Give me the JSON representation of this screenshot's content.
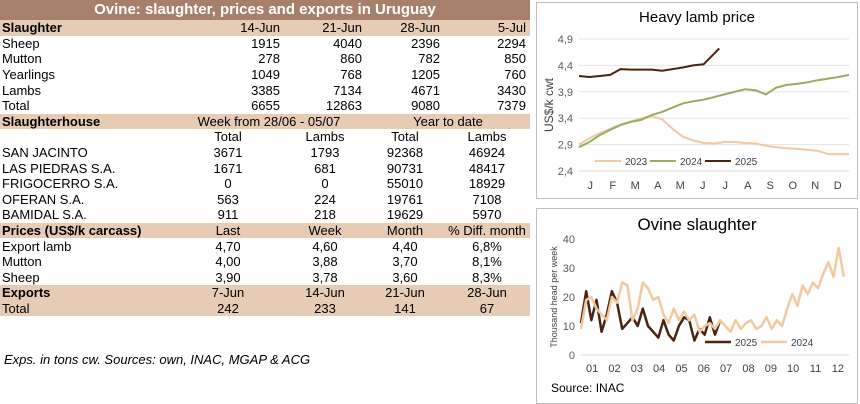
{
  "banner_title": "Ovine: slaughter, prices and exports in Uruguay",
  "slaughter": {
    "header": "Slaughter",
    "dates": [
      "14-Jun",
      "21-Jun",
      "28-Jun",
      "5-Jul"
    ],
    "rows": [
      {
        "label": "Sheep",
        "values": [
          "1915",
          "4040",
          "2396",
          "2294"
        ]
      },
      {
        "label": "Mutton",
        "values": [
          "278",
          "860",
          "782",
          "850"
        ]
      },
      {
        "label": "Yearlings",
        "values": [
          "1049",
          "768",
          "1205",
          "760"
        ]
      },
      {
        "label": "Lambs",
        "values": [
          "3385",
          "7134",
          "4671",
          "3430"
        ]
      },
      {
        "label": "Total",
        "values": [
          "6655",
          "12863",
          "9080",
          "7379"
        ]
      }
    ]
  },
  "slaughterhouse": {
    "header": "Slaughterhouse",
    "week_label": "Week from 28/06 - 05/07",
    "ytd_label": "Year to date",
    "cols": [
      "Total",
      "Lambs",
      "Total",
      "Lambs"
    ],
    "rows": [
      {
        "label": "SAN JACINTO",
        "values": [
          "3671",
          "1793",
          "92368",
          "46924"
        ]
      },
      {
        "label": "LAS PIEDRAS S.A.",
        "values": [
          "1671",
          "681",
          "90731",
          "48417"
        ]
      },
      {
        "label": "FRIGOCERRO S.A.",
        "values": [
          "0",
          "0",
          "55010",
          "18929"
        ]
      },
      {
        "label": "OFERAN S.A.",
        "values": [
          "563",
          "224",
          "19761",
          "7108"
        ]
      },
      {
        "label": "BAMIDAL S.A.",
        "values": [
          "911",
          "218",
          "19629",
          "5970"
        ]
      }
    ]
  },
  "prices": {
    "header": "Prices (US$/k carcass)",
    "cols": [
      "Last",
      "Week",
      "Month",
      "% Diff. month"
    ],
    "rows": [
      {
        "label": "Export lamb",
        "values": [
          "4,70",
          "4,60",
          "4,40",
          "6,8%"
        ]
      },
      {
        "label": "Mutton",
        "values": [
          "4,00",
          "3,88",
          "3,70",
          "8,1%"
        ]
      },
      {
        "label": "Sheep",
        "values": [
          "3,90",
          "3,78",
          "3,60",
          "8,3%"
        ]
      }
    ]
  },
  "exports": {
    "header": "Exports",
    "dates": [
      "7-Jun",
      "14-Jun",
      "21-Jun",
      "28-Jun"
    ],
    "rows": [
      {
        "label": "Total",
        "values": [
          "242",
          "233",
          "141",
          "67"
        ]
      }
    ]
  },
  "note": "Exps. in tons cw. Sources: own, INAC, MGAP & ACG",
  "chart_data": [
    {
      "type": "line",
      "title": "Heavy lamb price",
      "ylabel": "US$/k cwt",
      "xlabel": "",
      "categories": [
        "J",
        "F",
        "M",
        "A",
        "M",
        "J",
        "J",
        "A",
        "S",
        "O",
        "N",
        "D"
      ],
      "yticks": [
        "2,4",
        "2,9",
        "3,4",
        "3,9",
        "4,4",
        "4,9"
      ],
      "ylim": [
        2.4,
        4.9
      ],
      "xlim": [
        0,
        52
      ],
      "legend_position": "bottom",
      "series": [
        {
          "name": "2023",
          "color": "#f2c9a1",
          "x": [
            0,
            2,
            4,
            6,
            8,
            10,
            12,
            14,
            16,
            18,
            20,
            22,
            24,
            26,
            28,
            30,
            32,
            34,
            36,
            38,
            40,
            42,
            44,
            46,
            48,
            50,
            52
          ],
          "y": [
            2.9,
            3.02,
            3.12,
            3.2,
            3.28,
            3.34,
            3.4,
            3.44,
            3.38,
            3.2,
            3.05,
            2.98,
            2.93,
            2.92,
            2.95,
            2.95,
            2.93,
            2.92,
            2.88,
            2.85,
            2.83,
            2.82,
            2.8,
            2.78,
            2.72,
            2.72,
            2.72
          ]
        },
        {
          "name": "2024",
          "color": "#9aab63",
          "x": [
            0,
            2,
            4,
            6,
            8,
            10,
            12,
            14,
            16,
            18,
            20,
            22,
            24,
            26,
            28,
            30,
            32,
            34,
            36,
            38,
            40,
            42,
            44,
            46,
            48,
            50,
            52
          ],
          "y": [
            2.85,
            2.95,
            3.08,
            3.18,
            3.27,
            3.33,
            3.37,
            3.46,
            3.52,
            3.6,
            3.68,
            3.72,
            3.75,
            3.8,
            3.85,
            3.9,
            3.95,
            3.93,
            3.85,
            3.98,
            4.03,
            4.05,
            4.08,
            4.12,
            4.15,
            4.18,
            4.22
          ]
        },
        {
          "name": "2025",
          "color": "#4a2410",
          "x": [
            0,
            2,
            4,
            6,
            8,
            10,
            12,
            14,
            16,
            18,
            20,
            22,
            24,
            26,
            27
          ],
          "y": [
            4.2,
            4.18,
            4.2,
            4.22,
            4.33,
            4.32,
            4.32,
            4.32,
            4.3,
            4.33,
            4.36,
            4.4,
            4.42,
            4.62,
            4.72
          ]
        }
      ]
    },
    {
      "type": "line",
      "title": "Ovine slaughter",
      "ylabel": "Thousand head per week",
      "xlabel": "",
      "categories": [
        "01",
        "02",
        "03",
        "04",
        "05",
        "06",
        "07",
        "08",
        "09",
        "10",
        "11",
        "12"
      ],
      "yticks": [
        "0",
        "10",
        "20",
        "30",
        "40"
      ],
      "ylim": [
        0,
        40
      ],
      "xlim": [
        0,
        52
      ],
      "legend_position": "bottom",
      "source": "Source: INAC",
      "series": [
        {
          "name": "2025",
          "color": "#4a2410",
          "x": [
            0,
            1,
            2,
            3,
            4,
            5,
            6,
            7,
            8,
            9,
            10,
            11,
            12,
            13,
            14,
            15,
            16,
            17,
            18,
            19,
            20,
            21,
            22,
            23,
            24,
            25,
            26,
            27
          ],
          "y": [
            11,
            22,
            12,
            19,
            8,
            14,
            22,
            18,
            9,
            11,
            13,
            10,
            16,
            10,
            8,
            6,
            12,
            7,
            5,
            10,
            13,
            12,
            5,
            9,
            7,
            13,
            7,
            12
          ]
        },
        {
          "name": "2024",
          "color": "#f2c9a1",
          "x": [
            0,
            1,
            2,
            3,
            4,
            5,
            6,
            7,
            8,
            9,
            10,
            11,
            12,
            13,
            14,
            15,
            16,
            17,
            18,
            19,
            20,
            21,
            22,
            23,
            24,
            25,
            26,
            27,
            28,
            29,
            30,
            31,
            32,
            33,
            34,
            35,
            36,
            37,
            38,
            39,
            40,
            41,
            42,
            43,
            44,
            45,
            46,
            47,
            48,
            49,
            50,
            51
          ],
          "y": [
            9,
            19,
            20,
            16,
            14,
            12,
            20,
            18,
            25,
            24,
            12,
            16,
            25,
            23,
            19,
            20,
            14,
            11,
            16,
            12,
            15,
            12,
            14,
            8,
            10,
            11,
            9,
            12,
            10,
            8,
            12,
            9,
            11,
            12,
            9,
            10,
            13,
            9,
            12,
            10,
            16,
            21,
            17,
            24,
            21,
            25,
            23,
            28,
            32,
            27,
            37,
            27
          ]
        }
      ]
    }
  ]
}
